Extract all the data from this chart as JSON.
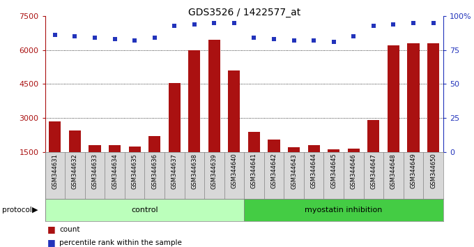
{
  "title": "GDS3526 / 1422577_at",
  "samples": [
    "GSM344631",
    "GSM344632",
    "GSM344633",
    "GSM344634",
    "GSM344635",
    "GSM344636",
    "GSM344637",
    "GSM344638",
    "GSM344639",
    "GSM344640",
    "GSM344641",
    "GSM344642",
    "GSM344643",
    "GSM344644",
    "GSM344645",
    "GSM344646",
    "GSM344647",
    "GSM344648",
    "GSM344649",
    "GSM344650"
  ],
  "counts": [
    2850,
    2450,
    1800,
    1800,
    1750,
    2200,
    4550,
    6000,
    6450,
    5100,
    2400,
    2050,
    1700,
    1800,
    1600,
    1650,
    2900,
    6200,
    6300,
    6300
  ],
  "percentile": [
    86,
    85,
    84,
    83,
    82,
    84,
    93,
    94,
    95,
    95,
    84,
    83,
    82,
    82,
    81,
    85,
    93,
    94,
    95,
    95
  ],
  "ylim_left": [
    1500,
    7500
  ],
  "ylim_right": [
    0,
    100
  ],
  "yticks_left": [
    1500,
    3000,
    4500,
    6000,
    7500
  ],
  "yticks_right": [
    0,
    25,
    50,
    75,
    100
  ],
  "bar_color": "#aa1111",
  "dot_color": "#2233bb",
  "control_color": "#bbffbb",
  "myostatin_color": "#44cc44",
  "control_label": "control",
  "myostatin_label": "myostatin inhibition",
  "n_control": 10,
  "legend_count_label": "count",
  "legend_percentile_label": "percentile rank within the sample",
  "protocol_label": "protocol",
  "label_bg_color": "#d8d8d8",
  "title_fontsize": 10,
  "axis_fontsize": 8,
  "bar_width": 0.6
}
